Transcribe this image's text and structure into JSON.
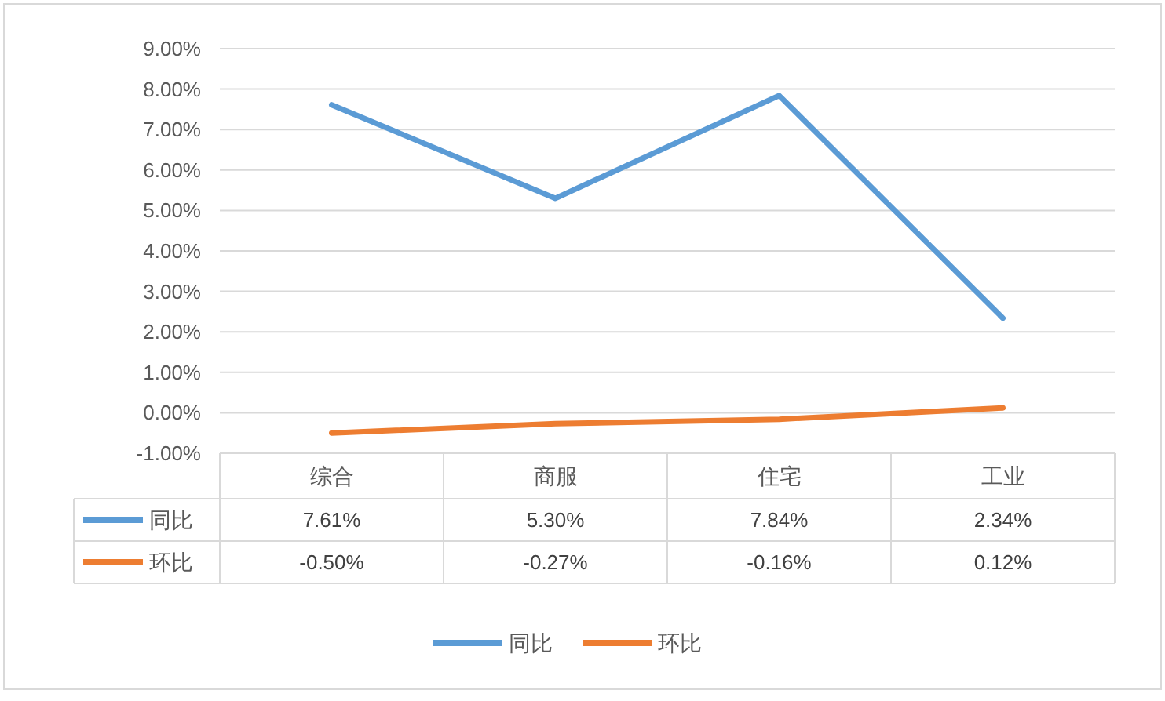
{
  "chart_data": {
    "type": "line",
    "categories": [
      "综合",
      "商服",
      "住宅",
      "工业"
    ],
    "series": [
      {
        "name": "同比",
        "color": "#5b9bd5",
        "values": [
          7.61,
          5.3,
          7.84,
          2.34
        ],
        "value_labels": [
          "7.61%",
          "5.30%",
          "7.84%",
          "2.34%"
        ]
      },
      {
        "name": "环比",
        "color": "#ed7d31",
        "values": [
          -0.5,
          -0.27,
          -0.16,
          0.12
        ],
        "value_labels": [
          "-0.50%",
          "-0.27%",
          "-0.16%",
          "0.12%"
        ]
      }
    ],
    "ylim": [
      -1,
      9
    ],
    "yticks": [
      {
        "value": -1,
        "label": "-1.00%"
      },
      {
        "value": 0,
        "label": "0.00%"
      },
      {
        "value": 1,
        "label": "1.00%"
      },
      {
        "value": 2,
        "label": "2.00%"
      },
      {
        "value": 3,
        "label": "3.00%"
      },
      {
        "value": 4,
        "label": "4.00%"
      },
      {
        "value": 5,
        "label": "5.00%"
      },
      {
        "value": 6,
        "label": "6.00%"
      },
      {
        "value": 7,
        "label": "7.00%"
      },
      {
        "value": 8,
        "label": "8.00%"
      },
      {
        "value": 9,
        "label": "9.00%"
      }
    ],
    "grid": "y",
    "legend": "bottom",
    "marker": "none",
    "line_style": "solid"
  }
}
